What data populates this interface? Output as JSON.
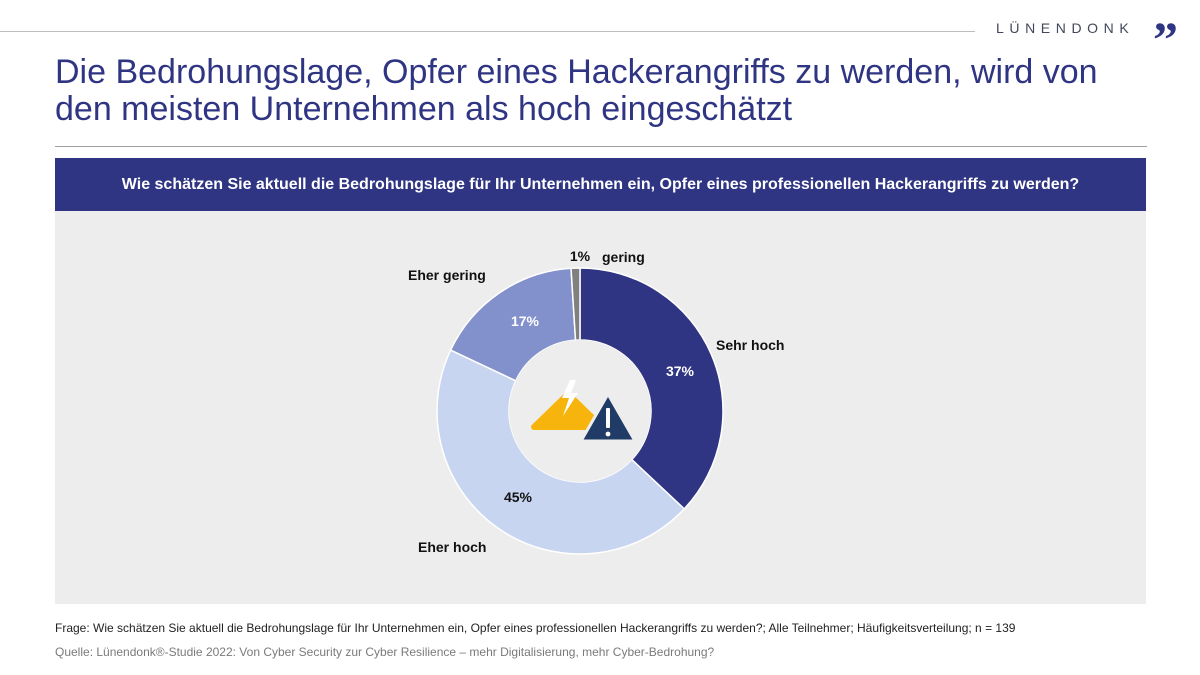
{
  "brand": {
    "name": "LÜNENDONK",
    "mark": "”",
    "color": "#2f3583"
  },
  "title": "Die Bedrohungslage, Opfer eines Hackerangriffs zu werden, wird von den meisten Unternehmen als hoch eingeschätzt",
  "question": "Wie schätzen Sie aktuell die Bedrohungslage für Ihr Unternehmen ein, Opfer eines professionellen Hackerangriffs zu werden?",
  "chart_data": {
    "type": "pie",
    "variant": "donut",
    "unit": "%",
    "slices": [
      {
        "label": "Sehr hoch",
        "value": 37,
        "value_label": "37%",
        "color": "#2f3583"
      },
      {
        "label": "Eher hoch",
        "value": 45,
        "value_label": "45%",
        "color": "#c8d5f1"
      },
      {
        "label": "Eher gering",
        "value": 17,
        "value_label": "17%",
        "color": "#8290cb"
      },
      {
        "label": "gering",
        "value": 1,
        "value_label": "1%",
        "color": "#808080"
      }
    ],
    "center_icons": [
      "lightning-warning-icon",
      "exclamation-warning-icon"
    ],
    "icon_colors": {
      "lightning": "#f7b40c",
      "exclamation": "#1f3b66"
    }
  },
  "footnote": "Frage: Wie schätzen Sie aktuell die Bedrohungslage für Ihr Unternehmen ein, Opfer eines professionellen Hackerangriffs zu werden?; Alle Teilnehmer; Häufigkeitsverteilung; n = 139",
  "source": "Quelle: Lünendonk®-Studie 2022: Von Cyber Security zur Cyber Resilience – mehr Digitalisierung, mehr Cyber-Bedrohung?"
}
